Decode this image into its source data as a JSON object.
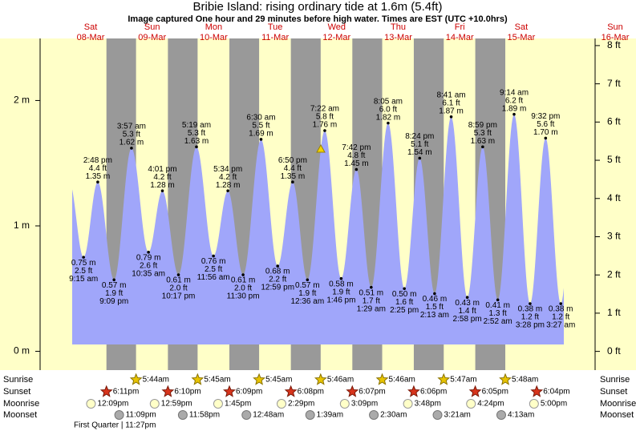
{
  "chart_data": {
    "type": "area",
    "title": "Bribie Island: rising  ordinary tide at 1.6m (5.4ft)",
    "subtitle": "Image captured One hour and 29 minutes before high water. Times are EST (UTC +10.0hrs)",
    "days": {
      "names": [
        "Sat",
        "Sun",
        "Mon",
        "Tue",
        "Wed",
        "Thu",
        "Fri",
        "Sat",
        "Sun"
      ],
      "dates": [
        "08-Mar",
        "09-Mar",
        "10-Mar",
        "11-Mar",
        "12-Mar",
        "13-Mar",
        "14-Mar",
        "15-Mar",
        "16-Mar"
      ]
    },
    "ylim": [
      -0.15,
      2.45
    ],
    "yticks": [
      {
        "value": 0,
        "label": "0 m"
      },
      {
        "value": 1,
        "label": "1 m"
      },
      {
        "value": 2,
        "label": "2 m"
      }
    ],
    "y2lim": [
      -0.49,
      8.04
    ],
    "y2ticks": [
      {
        "value": 0,
        "label": "0 ft"
      },
      {
        "value": 1,
        "label": "1 ft"
      },
      {
        "value": 2,
        "label": "2 ft"
      },
      {
        "value": 3,
        "label": "3 ft"
      },
      {
        "value": 4,
        "label": "4 ft"
      },
      {
        "value": 5,
        "label": "5 ft"
      },
      {
        "value": 6,
        "label": "6 ft"
      },
      {
        "value": 7,
        "label": "7 ft"
      },
      {
        "value": 8,
        "label": "8 ft"
      }
    ],
    "color": "#a0a6fa",
    "tides": {
      "times": [
        "9:15 am",
        "2:48 pm",
        "9:09 pm",
        "3:57 am",
        "10:35 am",
        "4:01 pm",
        "10:17 pm",
        "5:19 am",
        "11:56 am",
        "5:34 pm",
        "11:30 pm",
        "6:30 am",
        "12:59 pm",
        "6:50 pm",
        "12:36 am",
        "7:22 am",
        "1:46 pm",
        "7:42 pm",
        "1:29 am",
        "8:05 am",
        "2:25 pm",
        "8:24 pm",
        "2:13 am",
        "8:41 am",
        "2:58 pm",
        "8:59 pm",
        "2:52 am",
        "9:14 am",
        "3:28 pm",
        "9:32 pm",
        "3:27 am"
      ],
      "values": [
        0.75,
        1.35,
        0.57,
        1.62,
        0.79,
        1.28,
        0.61,
        1.63,
        0.76,
        1.28,
        0.61,
        1.69,
        0.68,
        1.35,
        0.57,
        1.76,
        0.58,
        1.45,
        0.51,
        1.82,
        0.5,
        1.54,
        0.46,
        1.87,
        0.43,
        1.63,
        0.41,
        1.89,
        0.38,
        1.7,
        0.38
      ],
      "value_labels": [
        "0.75 m",
        "1.35 m",
        "0.57 m",
        "1.62 m",
        "0.79 m",
        "1.28 m",
        "0.61 m",
        "1.63 m",
        "0.76 m",
        "1.28 m",
        "0.61 m",
        "1.69 m",
        "0.68 m",
        "1.35 m",
        "0.57 m",
        "1.76 m",
        "0.58 m",
        "1.45 m",
        "0.51 m",
        "1.82 m",
        "0.50 m",
        "1.54 m",
        "0.46 m",
        "1.87 m",
        "0.43 m",
        "1.63 m",
        "0.41 m",
        "1.89 m",
        "0.38 m",
        "1.70 m",
        "0.38 m"
      ],
      "feet_labels": [
        "2.5 ft",
        "4.4 ft",
        "1.9 ft",
        "5.3 ft",
        "2.6 ft",
        "4.2 ft",
        "2.0 ft",
        "5.3 ft",
        "2.5 ft",
        "4.2 ft",
        "2.0 ft",
        "5.5 ft",
        "2.2 ft",
        "4.4 ft",
        "1.9 ft",
        "5.8 ft",
        "1.9 ft",
        "4.8 ft",
        "1.7 ft",
        "6.0 ft",
        "1.6 ft",
        "5.1 ft",
        "1.5 ft",
        "6.1 ft",
        "1.4 ft",
        "5.3 ft",
        "1.3 ft",
        "6.2 ft",
        "1.2 ft",
        "5.6 ft",
        "1.2 ft"
      ]
    },
    "sunrise": {
      "label": "Sunrise",
      "times": [
        "5:44am",
        "5:45am",
        "5:45am",
        "5:46am",
        "5:46am",
        "5:47am",
        "5:48am"
      ]
    },
    "sunset": {
      "label": "Sunset",
      "times": [
        "6:11pm",
        "6:10pm",
        "6:09pm",
        "6:08pm",
        "6:07pm",
        "6:06pm",
        "6:05pm",
        "6:04pm"
      ]
    },
    "moonrise": {
      "label": "Moonrise",
      "times": [
        "12:09pm",
        "12:59pm",
        "1:45pm",
        "2:29pm",
        "3:09pm",
        "3:48pm",
        "4:24pm",
        "5:00pm"
      ]
    },
    "moonset": {
      "label": "Moonset",
      "times": [
        "11:09pm",
        "11:58pm",
        "12:48am",
        "1:39am",
        "2:30am",
        "3:21am",
        "4:13am"
      ]
    },
    "moon_phase": "First Quarter | 11:27pm"
  }
}
